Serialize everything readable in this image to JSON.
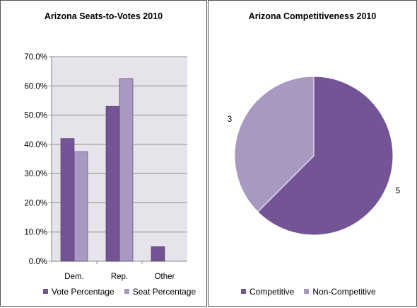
{
  "chart_data": [
    {
      "type": "bar",
      "title": "Arizona Seats-to-Votes 2010",
      "categories": [
        "Dem.",
        "Rep.",
        "Other"
      ],
      "series": [
        {
          "name": "Vote Percentage",
          "values": [
            42.0,
            53.0,
            5.0
          ],
          "color": "#735494"
        },
        {
          "name": "Seat Percentage",
          "values": [
            37.5,
            62.5,
            0.0
          ],
          "color": "#a899c2"
        }
      ],
      "ylim": [
        0,
        70
      ],
      "yticks": [
        "0.0%",
        "10.0%",
        "20.0%",
        "30.0%",
        "40.0%",
        "50.0%",
        "60.0%",
        "70.0%"
      ],
      "grid": true,
      "plot_background": "#e6e3ea",
      "legend_position": "bottom"
    },
    {
      "type": "pie",
      "title": "Arizona Competitiveness 2010",
      "slices": [
        {
          "name": "Competitive",
          "value": 5,
          "label": "5",
          "color": "#735494"
        },
        {
          "name": "Non-Competitive",
          "value": 3,
          "label": "3",
          "color": "#a899c2"
        }
      ],
      "legend_position": "bottom"
    }
  ]
}
